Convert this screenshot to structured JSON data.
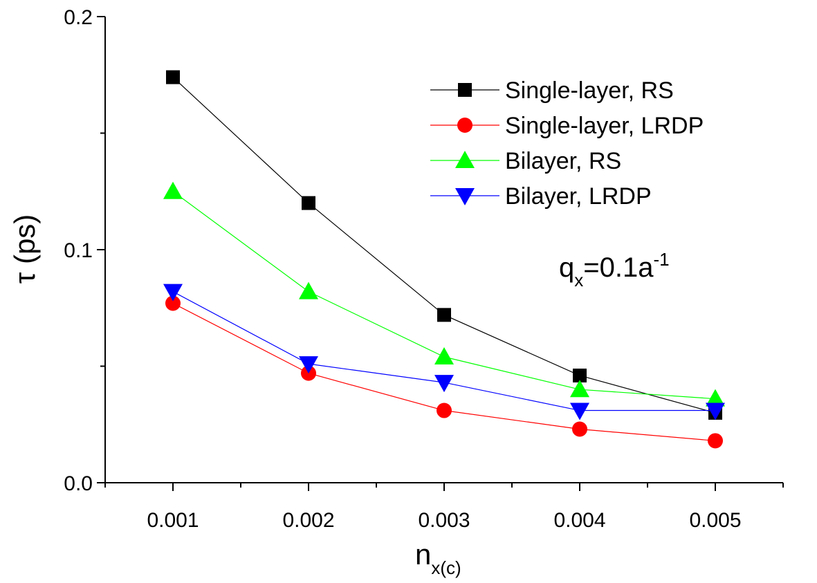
{
  "chart_data": {
    "type": "line",
    "title": "",
    "xlabel": "n",
    "xlabel_sub": "x(c)",
    "ylabel": "τ (ps)",
    "x": [
      0.001,
      0.002,
      0.003,
      0.004,
      0.005
    ],
    "x_tick_labels": [
      "0.001",
      "0.002",
      "0.003",
      "0.004",
      "0.005"
    ],
    "xlim": [
      0.0005,
      0.0055
    ],
    "ylim": [
      0.0,
      0.2
    ],
    "y_tick_values": [
      0.0,
      0.1,
      0.2
    ],
    "y_tick_labels": [
      "0.0",
      "0.1",
      "0.2"
    ],
    "y_minor_step": 0.05,
    "x_minor_step": 0.0005,
    "grid": false,
    "legend_position": "top-right",
    "series": [
      {
        "name": "Single-layer, RS",
        "color": "#000000",
        "marker": "square",
        "values": [
          0.174,
          0.12,
          0.072,
          0.046,
          0.03
        ]
      },
      {
        "name": "Single-layer, LRDP",
        "color": "#ff0000",
        "marker": "circle",
        "values": [
          0.077,
          0.047,
          0.031,
          0.023,
          0.018
        ]
      },
      {
        "name": "Bilayer, RS",
        "color": "#00ff00",
        "marker": "triangle-up",
        "values": [
          0.125,
          0.082,
          0.054,
          0.04,
          0.036
        ]
      },
      {
        "name": "Bilayer, LRDP",
        "color": "#0000ff",
        "marker": "triangle-down",
        "values": [
          0.082,
          0.051,
          0.043,
          0.031,
          0.031
        ]
      }
    ],
    "annotation": {
      "base": "q",
      "base_sub": "x",
      "middle": "=0.1a",
      "sup": "-1"
    }
  }
}
